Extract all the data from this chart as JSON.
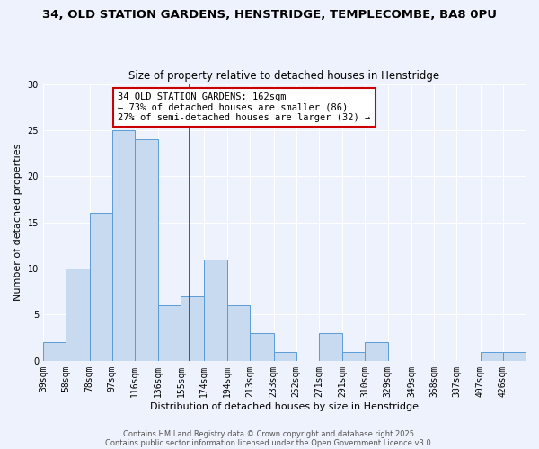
{
  "title1": "34, OLD STATION GARDENS, HENSTRIDGE, TEMPLECOMBE, BA8 0PU",
  "title2": "Size of property relative to detached houses in Henstridge",
  "xlabel": "Distribution of detached houses by size in Henstridge",
  "ylabel": "Number of detached properties",
  "bar_color": "#c8daf0",
  "bar_edge_color": "#5b9bd5",
  "background_color": "#eef2fc",
  "grid_color": "#ffffff",
  "bin_labels": [
    "39sqm",
    "58sqm",
    "78sqm",
    "97sqm",
    "116sqm",
    "136sqm",
    "155sqm",
    "174sqm",
    "194sqm",
    "213sqm",
    "233sqm",
    "252sqm",
    "271sqm",
    "291sqm",
    "310sqm",
    "329sqm",
    "349sqm",
    "368sqm",
    "387sqm",
    "407sqm",
    "426sqm"
  ],
  "bin_edges": [
    39,
    58,
    78,
    97,
    116,
    136,
    155,
    174,
    194,
    213,
    233,
    252,
    271,
    291,
    310,
    329,
    349,
    368,
    387,
    407,
    426,
    445
  ],
  "counts": [
    2,
    10,
    16,
    25,
    24,
    6,
    7,
    11,
    6,
    3,
    1,
    0,
    3,
    1,
    2,
    0,
    0,
    0,
    0,
    1,
    1
  ],
  "vline_x": 162,
  "vline_color": "#cc0000",
  "annotation_title": "34 OLD STATION GARDENS: 162sqm",
  "annotation_line1": "← 73% of detached houses are smaller (86)",
  "annotation_line2": "27% of semi-detached houses are larger (32) →",
  "annotation_box_color": "#ffffff",
  "annotation_box_edgecolor": "#cc0000",
  "ylim": [
    0,
    30
  ],
  "yticks": [
    0,
    5,
    10,
    15,
    20,
    25,
    30
  ],
  "footer1": "Contains HM Land Registry data © Crown copyright and database right 2025.",
  "footer2": "Contains public sector information licensed under the Open Government Licence v3.0.",
  "title1_fontsize": 9.5,
  "title2_fontsize": 8.5,
  "xlabel_fontsize": 8,
  "ylabel_fontsize": 8,
  "tick_fontsize": 7,
  "annotation_fontsize": 7.5,
  "footer_fontsize": 6
}
